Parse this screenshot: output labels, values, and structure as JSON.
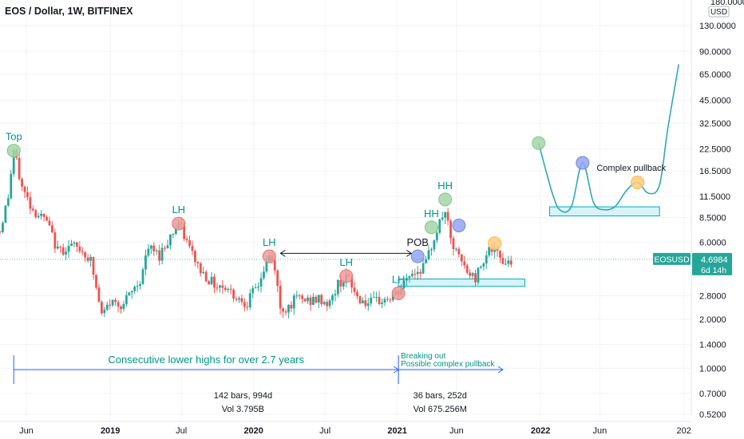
{
  "header": {
    "title": "EOS / Dollar, 1W, BITFINEX",
    "axis_top_value": "180.0000",
    "currency_badge": "USD"
  },
  "price_tag": {
    "symbol": "EOSUSD",
    "value": "4.6984",
    "countdown": "6d 14h",
    "color": "#26a69a"
  },
  "chart_data": {
    "type": "candlestick",
    "title": "EOS / Dollar, 1W, BITFINEX",
    "y_scale": "log",
    "y_ticks": [
      130,
      90,
      65,
      45,
      32.5,
      22.5,
      16.5,
      11.5,
      8.5,
      6,
      2.8,
      2,
      1.4,
      1,
      0.7,
      0.52
    ],
    "y_tick_labels": [
      "130.0000",
      "90.0000",
      "65.0000",
      "45.0000",
      "32.5000",
      "22.5000",
      "16.5000",
      "11.5000",
      "8.5000",
      "6.0000",
      "2.8000",
      "2.0000",
      "1.4000",
      "1.0000",
      "0.7000",
      "0.5200"
    ],
    "x_ticks": [
      "2018-06-01",
      "2019-01-01",
      "2019-07-01",
      "2020-01-01",
      "2020-07-01",
      "2021-01-01",
      "2021-06-01",
      "2022-01-01",
      "2022-06-01",
      "2023-01-01"
    ],
    "x_tick_labels": [
      "Jun",
      "2019",
      "Jul",
      "2020",
      "Jul",
      "2021",
      "Jun",
      "2022",
      "Jun",
      "202"
    ],
    "x_range": [
      "2018-03-26",
      "2023-01-20"
    ],
    "up_color": "#26a69a",
    "down_color": "#ef5350",
    "price_path": [
      [
        "2018-03-26",
        7.0
      ],
      [
        "2018-04-16",
        11.5
      ],
      [
        "2018-04-30",
        22.0
      ],
      [
        "2018-05-21",
        13.0
      ],
      [
        "2018-06-18",
        9.5
      ],
      [
        "2018-07-23",
        8.0
      ],
      [
        "2018-08-20",
        5.3
      ],
      [
        "2018-09-24",
        5.7
      ],
      [
        "2018-10-22",
        5.3
      ],
      [
        "2018-11-12",
        4.6
      ],
      [
        "2018-12-10",
        2.1
      ],
      [
        "2018-12-31",
        2.55
      ],
      [
        "2019-02-04",
        2.5
      ],
      [
        "2019-03-18",
        3.5
      ],
      [
        "2019-04-08",
        5.5
      ],
      [
        "2019-05-06",
        5.0
      ],
      [
        "2019-06-10",
        7.0
      ],
      [
        "2019-06-24",
        7.8
      ],
      [
        "2019-07-22",
        5.5
      ],
      [
        "2019-08-19",
        4.0
      ],
      [
        "2019-09-23",
        3.3
      ],
      [
        "2019-10-21",
        3.2
      ],
      [
        "2019-11-18",
        2.75
      ],
      [
        "2019-12-16",
        2.55
      ],
      [
        "2020-01-13",
        3.3
      ],
      [
        "2020-02-10",
        4.9
      ],
      [
        "2020-02-24",
        4.2
      ],
      [
        "2020-03-09",
        2.3
      ],
      [
        "2020-03-23",
        2.35
      ],
      [
        "2020-04-20",
        2.7
      ],
      [
        "2020-05-18",
        2.6
      ],
      [
        "2020-06-15",
        2.65
      ],
      [
        "2020-07-13",
        2.5
      ],
      [
        "2020-08-03",
        3.3
      ],
      [
        "2020-08-24",
        3.7
      ],
      [
        "2020-09-21",
        2.75
      ],
      [
        "2020-10-19",
        2.5
      ],
      [
        "2020-11-16",
        2.6
      ],
      [
        "2020-12-14",
        2.7
      ],
      [
        "2021-01-04",
        2.9
      ],
      [
        "2021-02-01",
        3.8
      ],
      [
        "2021-02-22",
        4.0
      ],
      [
        "2021-03-15",
        4.4
      ],
      [
        "2021-04-05",
        6.5
      ],
      [
        "2021-05-03",
        9.5
      ],
      [
        "2021-05-17",
        6.0
      ],
      [
        "2021-06-07",
        4.8
      ],
      [
        "2021-06-28",
        3.9
      ],
      [
        "2021-07-19",
        3.6
      ],
      [
        "2021-08-09",
        4.8
      ],
      [
        "2021-08-23",
        5.5
      ],
      [
        "2021-09-13",
        5.0
      ],
      [
        "2021-10-04",
        4.5
      ],
      [
        "2021-10-18",
        4.7
      ]
    ],
    "volume_stats": [
      {
        "bars": "142 bars, 994d",
        "vol": "Vol 3.795B"
      },
      {
        "bars": "36 bars, 252d",
        "vol": "Vol 675.256M"
      }
    ],
    "annotations": [
      {
        "text": "Top",
        "date": "2018-04-30",
        "price": 22.0,
        "marker": "green"
      },
      {
        "text": "LH",
        "date": "2019-06-24",
        "price": 7.8,
        "marker": "red"
      },
      {
        "text": "LH",
        "date": "2020-02-10",
        "price": 4.9,
        "marker": "red"
      },
      {
        "text": "LH",
        "date": "2020-08-24",
        "price": 3.7,
        "marker": "red"
      },
      {
        "text": "LH",
        "date": "2021-01-04",
        "price": 2.9,
        "marker": "red"
      },
      {
        "text": "POB",
        "date": "2021-02-22",
        "price": 4.9,
        "marker": "blue"
      },
      {
        "text": "HH",
        "date": "2021-03-29",
        "price": 7.4,
        "marker": "green"
      },
      {
        "text": "HH",
        "date": "2021-05-03",
        "price": 11.0,
        "marker": "green"
      },
      {
        "text": "Complex pullback",
        "date": "2022-08-20",
        "price": 16.5,
        "marker": ""
      }
    ],
    "extra_markers": [
      {
        "date": "2021-06-07",
        "price": 7.6,
        "color": "blue"
      },
      {
        "date": "2021-09-06",
        "price": 5.9,
        "color": "orange"
      },
      {
        "date": "2021-12-27",
        "price": 24.5,
        "color": "green"
      },
      {
        "date": "2022-04-18",
        "price": 18.5,
        "color": "blue"
      },
      {
        "date": "2022-09-05",
        "price": 14.0,
        "color": "orange"
      }
    ],
    "zones": [
      {
        "from": "2021-01-04",
        "to": "2021-11-22",
        "low": 3.2,
        "high": 3.55
      },
      {
        "from": "2022-01-24",
        "to": "2022-10-31",
        "low": 8.7,
        "high": 9.9
      }
    ],
    "projection_path": [
      [
        "2021-12-27",
        24.5
      ],
      [
        "2022-01-31",
        12.0
      ],
      [
        "2022-02-21",
        9.4
      ],
      [
        "2022-03-21",
        10.0
      ],
      [
        "2022-04-18",
        18.5
      ],
      [
        "2022-05-16",
        10.5
      ],
      [
        "2022-06-13",
        9.5
      ],
      [
        "2022-07-11",
        10.0
      ],
      [
        "2022-08-08",
        12.5
      ],
      [
        "2022-09-05",
        14.0
      ],
      [
        "2022-10-03",
        12.0
      ],
      [
        "2022-10-31",
        13.5
      ],
      [
        "2022-11-21",
        30.0
      ],
      [
        "2022-12-19",
        75.0
      ]
    ],
    "lower_highs_arrow": {
      "from": "2020-02-10",
      "to": "2021-02-22",
      "price": 5.0
    },
    "measure_lines": [
      {
        "label": "Consecutive lower highs for over 2.7 years",
        "from": "2018-04-30",
        "to": "2021-01-04",
        "price": 0.98
      },
      {
        "label": "Breaking out",
        "label2": "Possible complex pullback",
        "from": "2021-01-04",
        "to": "2021-09-27",
        "price": 0.98
      }
    ]
  }
}
